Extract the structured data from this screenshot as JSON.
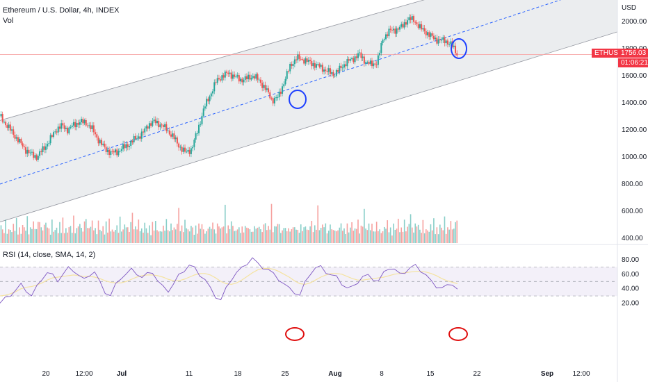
{
  "header": {
    "title": "Ethereum / U.S. Dollar, 4h, INDEX",
    "vol_label": "Vol",
    "rsi_label": "RSI (14, close, SMA, 14, 2)"
  },
  "price_badge": {
    "symbol": "ETHUSD",
    "price": "1756.03",
    "countdown": "01:06:21"
  },
  "colors": {
    "up": "#26a69a",
    "down": "#ef5350",
    "rsi_line": "#7e57c2",
    "rsi_ma": "#f5e3a0",
    "channel_fill": "#e3e5e8",
    "midline": "#2962ff",
    "circle_blue": "#1e40ff",
    "circle_red": "#e01010",
    "badge": "#f23645"
  },
  "chart_data": [
    {
      "type": "candlestick",
      "title": "Ethereum / U.S. Dollar, 4h, INDEX",
      "y_unit": "USD",
      "y_ticks": [
        "2000.00",
        "1800.00",
        "1600.00",
        "1400.00",
        "1200.00",
        "1000.00",
        "800.00",
        "600.00",
        "400.00"
      ],
      "x_ticks": [
        "20",
        "12:00",
        "Jul",
        "11",
        "18",
        "25",
        "Aug",
        "8",
        "15",
        "22",
        "Sep",
        "12:00"
      ],
      "last_price": 1756.03,
      "close_path": [
        [
          0,
          1300
        ],
        [
          6,
          1240
        ],
        [
          12,
          1180
        ],
        [
          18,
          1120
        ],
        [
          24,
          1060
        ],
        [
          30,
          1020
        ],
        [
          36,
          1000
        ],
        [
          42,
          1060
        ],
        [
          48,
          1120
        ],
        [
          54,
          1200
        ],
        [
          60,
          1230
        ],
        [
          66,
          1200
        ],
        [
          72,
          1240
        ],
        [
          78,
          1260
        ],
        [
          84,
          1250
        ],
        [
          90,
          1200
        ],
        [
          96,
          1120
        ],
        [
          102,
          1060
        ],
        [
          108,
          1030
        ],
        [
          114,
          1040
        ],
        [
          120,
          1070
        ],
        [
          126,
          1100
        ],
        [
          132,
          1140
        ],
        [
          138,
          1170
        ],
        [
          144,
          1240
        ],
        [
          150,
          1260
        ],
        [
          156,
          1240
        ],
        [
          162,
          1200
        ],
        [
          168,
          1150
        ],
        [
          174,
          1080
        ],
        [
          180,
          1030
        ],
        [
          186,
          1060
        ],
        [
          192,
          1200
        ],
        [
          198,
          1360
        ],
        [
          204,
          1460
        ],
        [
          210,
          1560
        ],
        [
          216,
          1600
        ],
        [
          222,
          1620
        ],
        [
          228,
          1590
        ],
        [
          234,
          1570
        ],
        [
          240,
          1580
        ],
        [
          246,
          1600
        ],
        [
          252,
          1560
        ],
        [
          258,
          1500
        ],
        [
          264,
          1420
        ],
        [
          270,
          1440
        ],
        [
          276,
          1560
        ],
        [
          282,
          1680
        ],
        [
          288,
          1730
        ],
        [
          294,
          1720
        ],
        [
          300,
          1700
        ],
        [
          306,
          1680
        ],
        [
          312,
          1660
        ],
        [
          318,
          1630
        ],
        [
          324,
          1610
        ],
        [
          330,
          1650
        ],
        [
          336,
          1700
        ],
        [
          342,
          1720
        ],
        [
          348,
          1760
        ],
        [
          354,
          1710
        ],
        [
          360,
          1680
        ],
        [
          366,
          1700
        ],
        [
          372,
          1880
        ],
        [
          378,
          1930
        ],
        [
          384,
          1940
        ],
        [
          390,
          1960
        ],
        [
          396,
          2020
        ],
        [
          402,
          2010
        ],
        [
          408,
          1950
        ],
        [
          414,
          1920
        ],
        [
          420,
          1880
        ],
        [
          426,
          1860
        ],
        [
          432,
          1860
        ],
        [
          438,
          1830
        ],
        [
          444,
          1756
        ]
      ],
      "volume_values": [
        0.4,
        0.28,
        0.22,
        0.5,
        0.3,
        0.25,
        0.35,
        0.2,
        0.45,
        0.3,
        0.55,
        0.25,
        0.3,
        0.2,
        0.4,
        0.35,
        0.3,
        0.6,
        0.25,
        0.3,
        0.4,
        0.5,
        0.3,
        0.35,
        0.45,
        0.9,
        0.3,
        0.35,
        0.4,
        0.5
      ],
      "channel": {
        "upper": [
          [
            0,
            1270
          ],
          [
            150,
            1600
          ],
          [
            300,
            1930
          ],
          [
            444,
            2230
          ]
        ],
        "lower": [
          [
            0,
            520
          ],
          [
            150,
            850
          ],
          [
            300,
            1180
          ],
          [
            444,
            1560
          ]
        ],
        "mid": [
          [
            0,
            800
          ],
          [
            150,
            1120
          ],
          [
            300,
            1460
          ],
          [
            444,
            1910
          ]
        ]
      }
    },
    {
      "type": "line",
      "title": "RSI (14, close, SMA, 14, 2)",
      "y_ticks": [
        "80.00",
        "60.00",
        "40.00",
        "20.00"
      ],
      "bands": [
        70,
        50,
        30
      ],
      "rsi_values": [
        20,
        26,
        32,
        38,
        45,
        38,
        30,
        42,
        55,
        62,
        58,
        52,
        60,
        68,
        66,
        58,
        52,
        60,
        63,
        48,
        36,
        30,
        45,
        56,
        60,
        66,
        62,
        55,
        60,
        64,
        50,
        42,
        38,
        46,
        58,
        66,
        72,
        68,
        60,
        52,
        40,
        30,
        24,
        40,
        54,
        62,
        68,
        76,
        82,
        74,
        70,
        66,
        60,
        54,
        46,
        40,
        36,
        30,
        48,
        62,
        68,
        70,
        64,
        58,
        56,
        48,
        40,
        42,
        50,
        56,
        58,
        54,
        50,
        62,
        70,
        66,
        60,
        64,
        68,
        72,
        66,
        58,
        50,
        44,
        40,
        44,
        48,
        38
      ],
      "ma_values": [
        30,
        31,
        33,
        36,
        40,
        42,
        43,
        45,
        48,
        52,
        55,
        56,
        57,
        58,
        59,
        58,
        57,
        57,
        56,
        54,
        51,
        49,
        48,
        48,
        50,
        53,
        56,
        58,
        59,
        59,
        58,
        56,
        53,
        51,
        51,
        53,
        56,
        59,
        61,
        61,
        59,
        55,
        50,
        47,
        46,
        48,
        52,
        57,
        62,
        66,
        68,
        68,
        67,
        64,
        60,
        56,
        51,
        47,
        46,
        48,
        52,
        56,
        59,
        61,
        61,
        60,
        57,
        54,
        52,
        52,
        53,
        54,
        55,
        56,
        58,
        60,
        61,
        62,
        63,
        64,
        64,
        63,
        61,
        58,
        54,
        51,
        49,
        47
      ]
    }
  ]
}
